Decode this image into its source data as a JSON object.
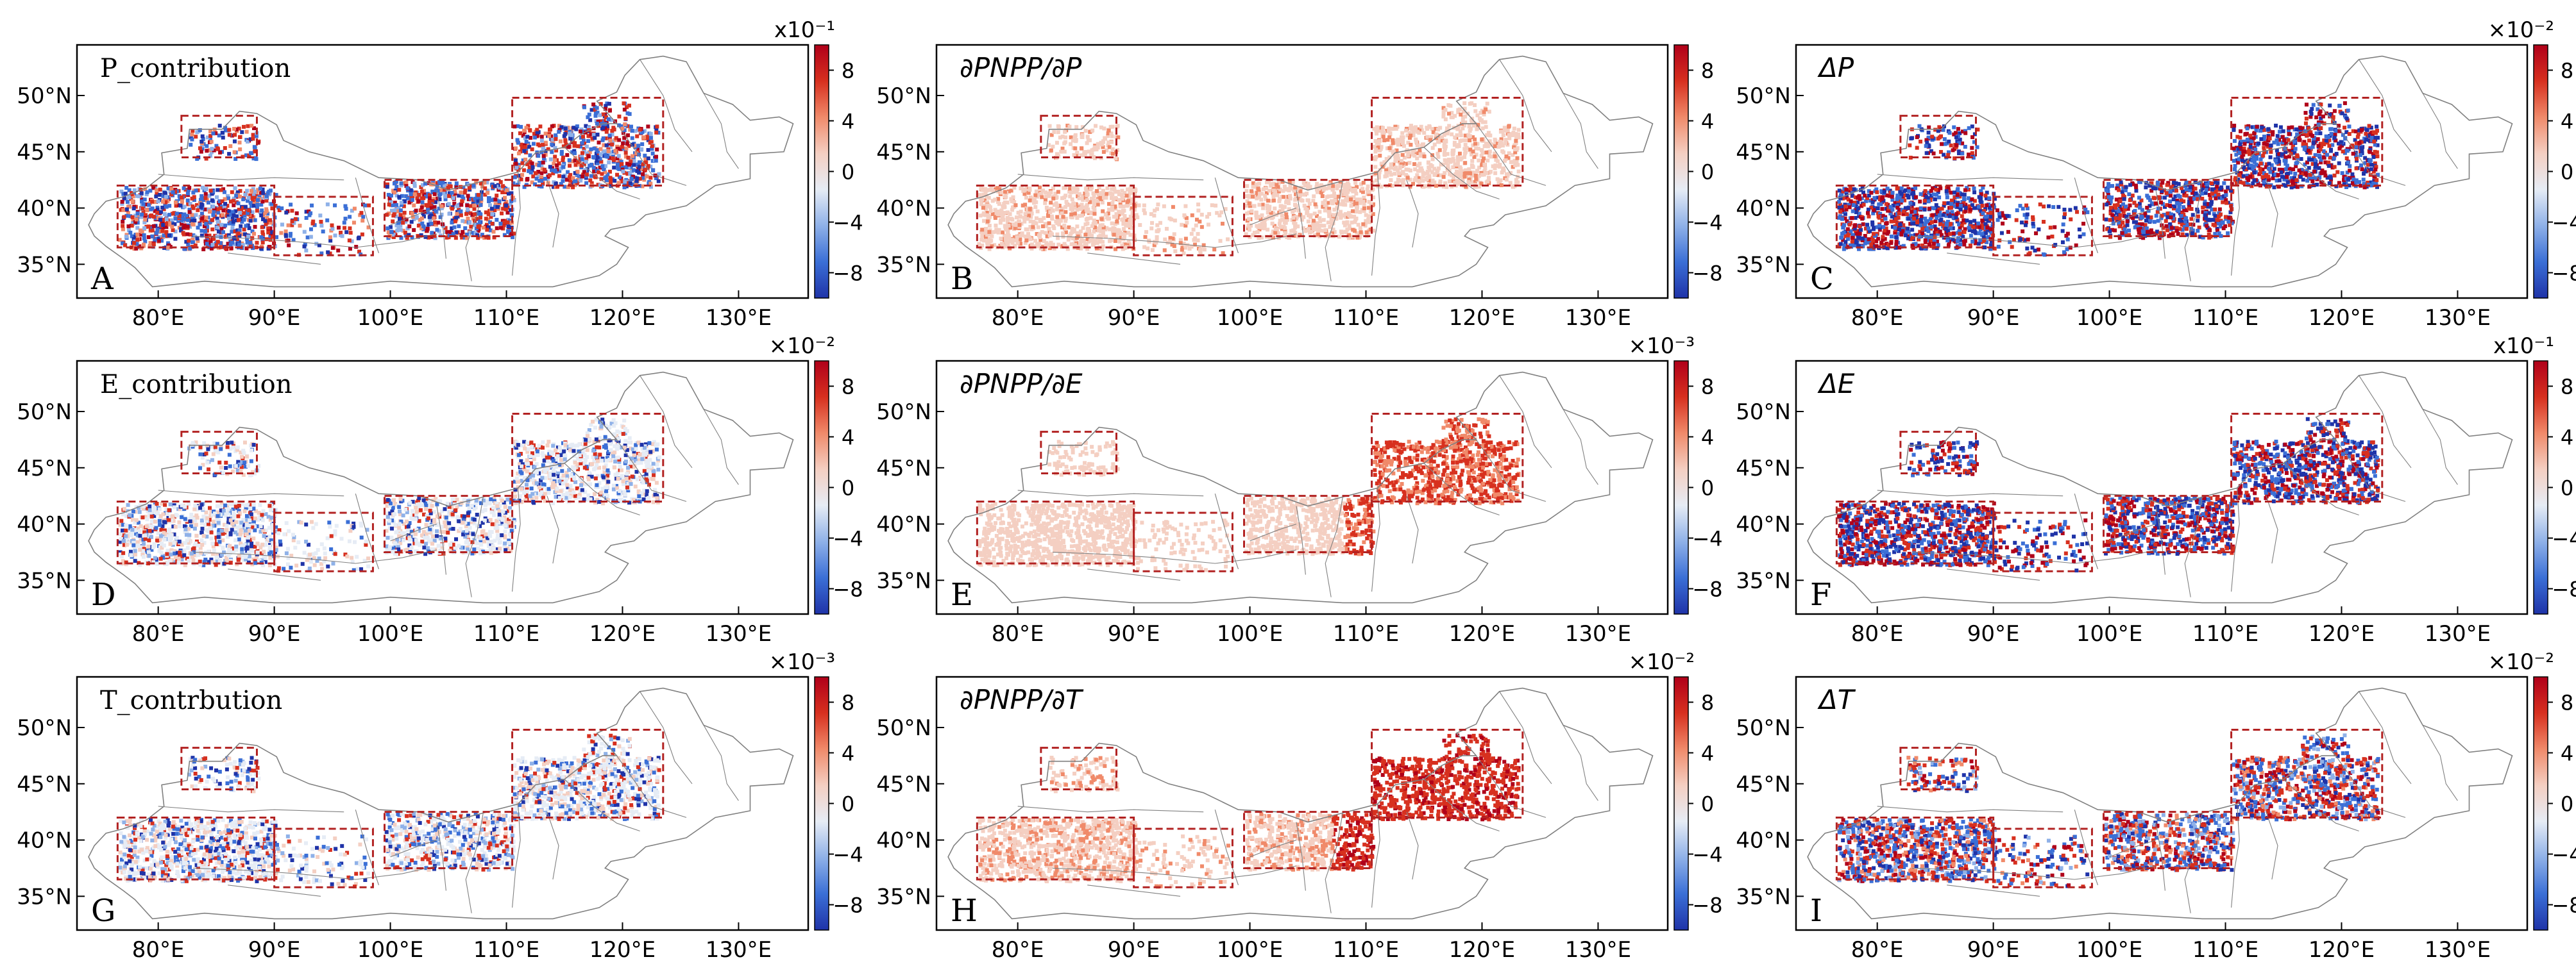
{
  "figure": {
    "x_ticks": [
      "80°E",
      "90°E",
      "100°E",
      "110°E",
      "120°E",
      "130°E"
    ],
    "y_ticks": [
      "50°N",
      "45°N",
      "40°N",
      "35°N"
    ],
    "colorbar_ticks": [
      "8",
      "4",
      "0",
      "−4",
      "−8"
    ],
    "panels": [
      {
        "id": "A",
        "title": "P_contribution",
        "title_style": "serif",
        "scale": "x10⁻¹",
        "variant": "div"
      },
      {
        "id": "B",
        "title": "∂PNPP/∂P",
        "title_style": "italic",
        "scale": "",
        "variant": "pos_light"
      },
      {
        "id": "C",
        "title": "ΔP",
        "title_style": "italic",
        "scale": "×10⁻²",
        "variant": "div_strong"
      },
      {
        "id": "D",
        "title": "E_contribution",
        "title_style": "serif",
        "scale": "×10⁻²",
        "variant": "div_light"
      },
      {
        "id": "E",
        "title": "∂PNPP/∂E",
        "title_style": "italic",
        "scale": "×10⁻³",
        "variant": "pos_east"
      },
      {
        "id": "F",
        "title": "ΔE",
        "title_style": "italic",
        "scale": "x10⁻¹",
        "variant": "div_strong"
      },
      {
        "id": "G",
        "title": "T_contrbution",
        "title_style": "serif",
        "scale": "×10⁻³",
        "variant": "div_light"
      },
      {
        "id": "H",
        "title": "∂PNPP/∂T",
        "title_style": "italic",
        "scale": "×10⁻²",
        "variant": "pos_strong"
      },
      {
        "id": "I",
        "title": "ΔT",
        "title_style": "italic",
        "scale": "×10⁻²",
        "variant": "div"
      }
    ],
    "colors": {
      "frame": "#000000",
      "box": "#b22222",
      "border": "#808080",
      "cmap": [
        "#1f33a8",
        "#3b6fd6",
        "#8fb1e8",
        "#e6ecf5",
        "#f4cfc2",
        "#f08a6a",
        "#d7301f",
        "#b0001a"
      ]
    }
  }
}
